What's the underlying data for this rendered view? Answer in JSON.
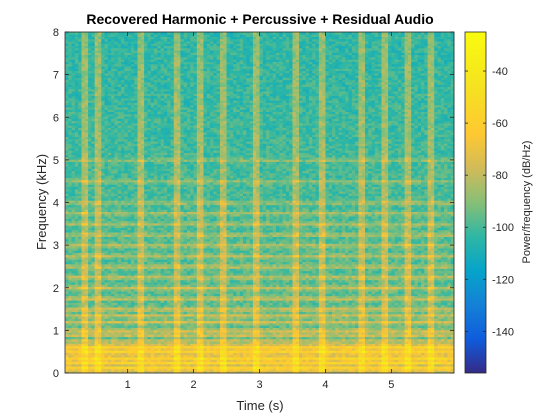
{
  "chart_data": {
    "type": "heatmap",
    "title": "Recovered Harmonic + Percussive + Residual Audio",
    "xlabel": "Time (s)",
    "ylabel": "Frequency (kHz)",
    "colorbar_label": "Power/frequency (dB/Hz)",
    "xlim": [
      0.05,
      5.95
    ],
    "ylim": [
      0,
      8
    ],
    "clim": [
      -156,
      -25
    ],
    "x_ticks": [
      1,
      2,
      3,
      4,
      5
    ],
    "x_tick_labels": [
      "1",
      "2",
      "3",
      "4",
      "5"
    ],
    "y_ticks": [
      0,
      1,
      2,
      3,
      4,
      5,
      6,
      7,
      8
    ],
    "y_tick_labels": [
      "0",
      "1",
      "2",
      "3",
      "4",
      "5",
      "6",
      "7",
      "8"
    ],
    "colorbar_ticks": [
      -140,
      -120,
      -100,
      -80,
      -60,
      -40
    ],
    "colorbar_tick_labels": [
      "-140",
      "-120",
      "-100",
      "-80",
      "-60",
      "-40"
    ],
    "colormap": "parula",
    "typical_background_db": -95,
    "harmonic_bands_khz": [
      0.12,
      0.25,
      0.35,
      0.5,
      0.6,
      0.75,
      0.9,
      1.0,
      1.2,
      1.35,
      1.5,
      1.75,
      2.0,
      2.25,
      2.5,
      2.75,
      3.0,
      3.25,
      3.5,
      3.75,
      4.0,
      4.5,
      5.0
    ],
    "percussive_onsets_s": [
      0.35,
      0.55,
      1.2,
      1.75,
      2.1,
      2.45,
      2.95,
      3.55,
      3.95,
      4.55,
      4.9,
      5.25,
      5.6
    ]
  }
}
